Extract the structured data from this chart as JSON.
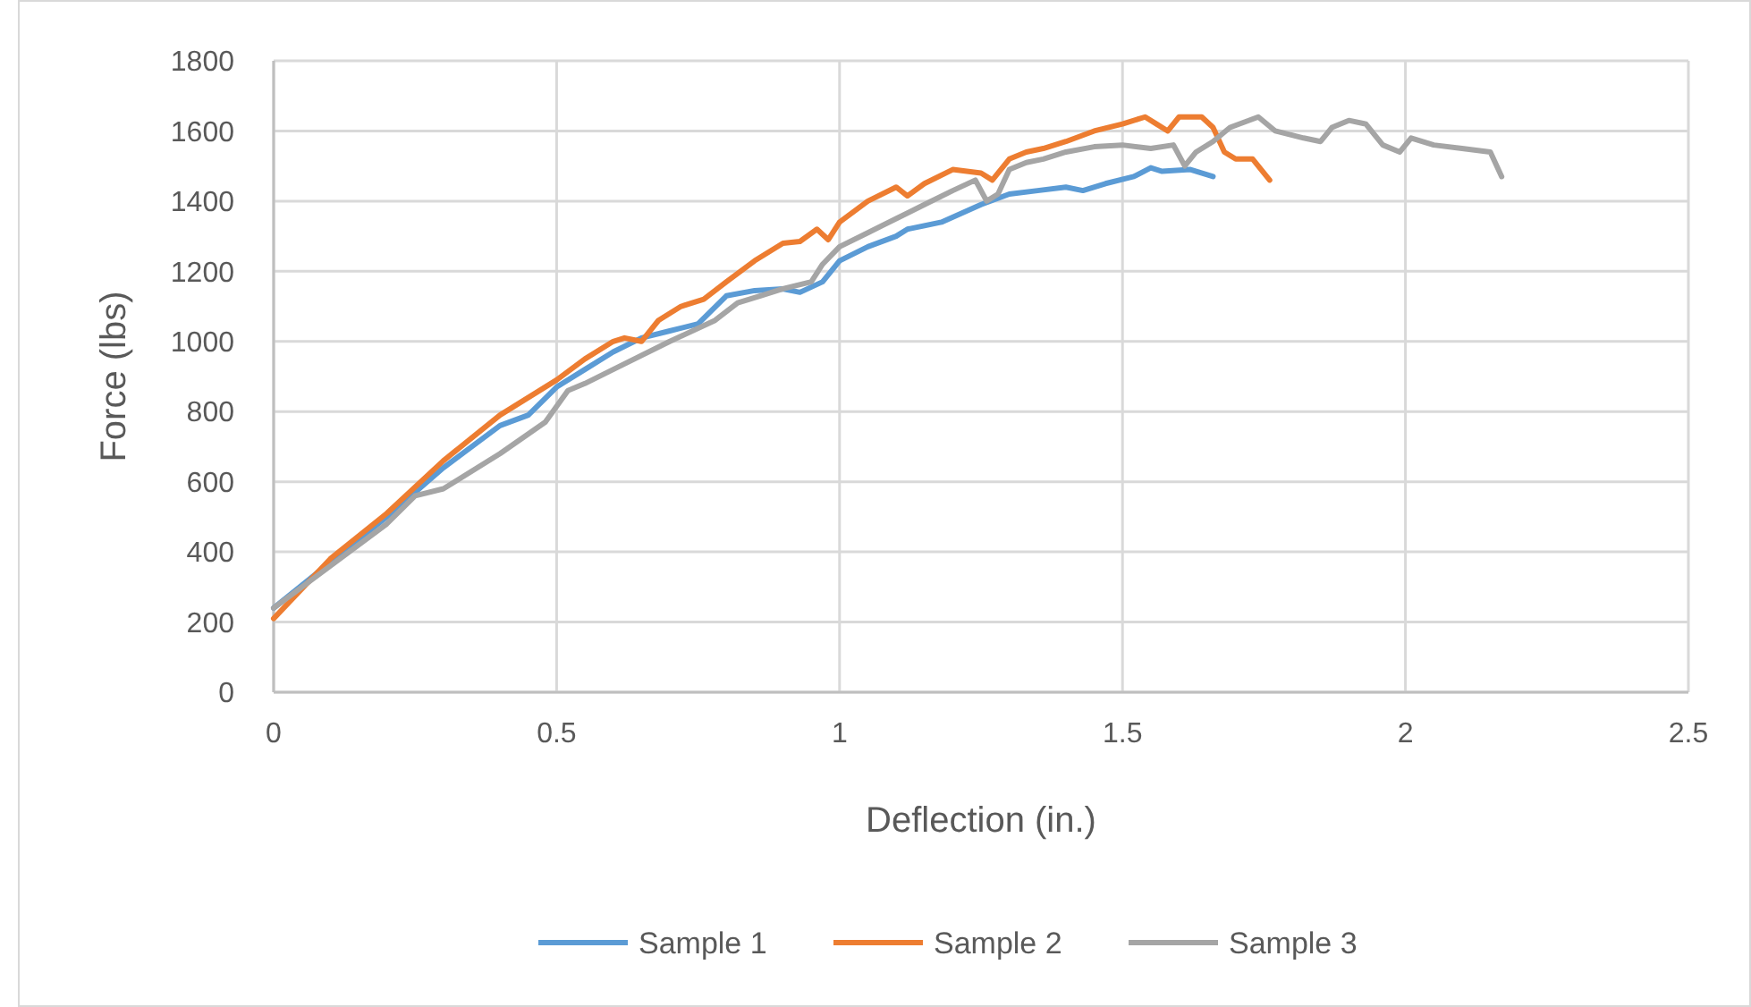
{
  "chart_data": {
    "type": "line",
    "xlabel": "Deflection (in.)",
    "ylabel": "Force (lbs)",
    "xlim": [
      0,
      2.5
    ],
    "xticks": [
      0,
      0.5,
      1,
      1.5,
      2,
      2.5
    ],
    "ylim": [
      0,
      1800
    ],
    "yticks": [
      0,
      200,
      400,
      600,
      800,
      1000,
      1200,
      1400,
      1600,
      1800
    ],
    "grid": true,
    "legend": "bottom",
    "marker": "none",
    "line_style": "solid",
    "series": [
      {
        "name": "Sample 1",
        "color": "#5b9bd5",
        "x": [
          0,
          0.1,
          0.2,
          0.3,
          0.4,
          0.45,
          0.5,
          0.55,
          0.6,
          0.65,
          0.7,
          0.75,
          0.8,
          0.85,
          0.9,
          0.93,
          0.97,
          1.0,
          1.05,
          1.1,
          1.12,
          1.18,
          1.25,
          1.3,
          1.35,
          1.4,
          1.43,
          1.47,
          1.52,
          1.55,
          1.57,
          1.62,
          1.66
        ],
        "values": [
          240,
          370,
          500,
          640,
          760,
          790,
          870,
          920,
          970,
          1010,
          1030,
          1050,
          1130,
          1145,
          1150,
          1140,
          1170,
          1230,
          1270,
          1300,
          1320,
          1340,
          1390,
          1420,
          1430,
          1440,
          1430,
          1450,
          1470,
          1495,
          1485,
          1490,
          1470
        ]
      },
      {
        "name": "Sample 2",
        "color": "#ed7d31",
        "x": [
          0,
          0.1,
          0.2,
          0.3,
          0.4,
          0.5,
          0.55,
          0.6,
          0.62,
          0.65,
          0.68,
          0.72,
          0.76,
          0.8,
          0.85,
          0.9,
          0.93,
          0.96,
          0.98,
          1.0,
          1.05,
          1.1,
          1.12,
          1.15,
          1.2,
          1.25,
          1.27,
          1.3,
          1.33,
          1.36,
          1.4,
          1.45,
          1.5,
          1.54,
          1.56,
          1.58,
          1.6,
          1.64,
          1.66,
          1.68,
          1.7,
          1.73,
          1.76
        ],
        "values": [
          210,
          380,
          510,
          660,
          790,
          890,
          950,
          1000,
          1010,
          1000,
          1060,
          1100,
          1120,
          1170,
          1230,
          1280,
          1285,
          1320,
          1290,
          1340,
          1400,
          1440,
          1415,
          1450,
          1490,
          1480,
          1460,
          1520,
          1540,
          1550,
          1570,
          1600,
          1620,
          1640,
          1620,
          1600,
          1640,
          1640,
          1610,
          1540,
          1520,
          1520,
          1460
        ]
      },
      {
        "name": "Sample 3",
        "color": "#a5a5a5",
        "x": [
          0,
          0.1,
          0.2,
          0.25,
          0.3,
          0.4,
          0.48,
          0.52,
          0.55,
          0.6,
          0.7,
          0.78,
          0.82,
          0.86,
          0.9,
          0.95,
          0.97,
          1.0,
          1.05,
          1.1,
          1.15,
          1.2,
          1.24,
          1.26,
          1.28,
          1.3,
          1.33,
          1.36,
          1.4,
          1.45,
          1.5,
          1.55,
          1.59,
          1.61,
          1.63,
          1.66,
          1.69,
          1.74,
          1.77,
          1.82,
          1.85,
          1.87,
          1.9,
          1.93,
          1.96,
          1.99,
          2.01,
          2.05,
          2.1,
          2.15,
          2.17
        ],
        "values": [
          240,
          360,
          480,
          560,
          580,
          680,
          770,
          860,
          880,
          920,
          1000,
          1060,
          1110,
          1130,
          1150,
          1170,
          1220,
          1270,
          1310,
          1350,
          1390,
          1430,
          1460,
          1400,
          1420,
          1490,
          1510,
          1520,
          1540,
          1555,
          1560,
          1550,
          1560,
          1500,
          1540,
          1570,
          1610,
          1640,
          1600,
          1580,
          1570,
          1610,
          1630,
          1620,
          1560,
          1540,
          1580,
          1560,
          1550,
          1540,
          1470
        ]
      }
    ]
  }
}
